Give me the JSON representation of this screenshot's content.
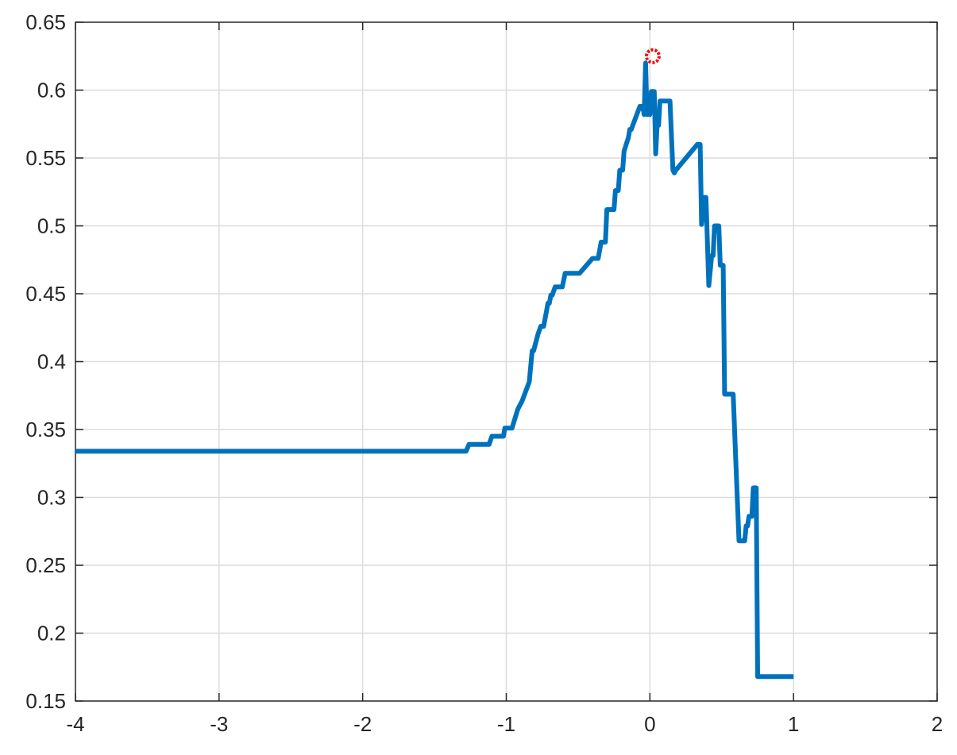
{
  "chart_data": {
    "type": "line",
    "title": "",
    "xlabel": "",
    "ylabel": "",
    "xlim": [
      -4,
      2
    ],
    "ylim": [
      0.15,
      0.65
    ],
    "grid": true,
    "x_ticks": [
      -4,
      -3,
      -2,
      -1,
      0,
      1,
      2
    ],
    "x_tick_labels": [
      "-4",
      "-3",
      "-2",
      "-1",
      "0",
      "1",
      "2"
    ],
    "y_ticks": [
      0.15,
      0.2,
      0.25,
      0.3,
      0.35,
      0.4,
      0.45,
      0.5,
      0.55,
      0.6,
      0.65
    ],
    "y_tick_labels": [
      "0.15",
      "0.2",
      "0.25",
      "0.3",
      "0.35",
      "0.4",
      "0.45",
      "0.5",
      "0.55",
      "0.6",
      "0.65"
    ],
    "series": [
      {
        "color": "#0072bd",
        "x": [
          -4.0,
          -1.28,
          -1.26,
          -1.12,
          -1.1,
          -1.02,
          -1.01,
          -0.96,
          -0.92,
          -0.89,
          -0.84,
          -0.82,
          -0.81,
          -0.78,
          -0.76,
          -0.74,
          -0.72,
          -0.71,
          -0.7,
          -0.69,
          -0.68,
          -0.66,
          -0.64,
          -0.61,
          -0.59,
          -0.55,
          -0.52,
          -0.49,
          -0.4,
          -0.39,
          -0.36,
          -0.34,
          -0.31,
          -0.3,
          -0.28,
          -0.25,
          -0.24,
          -0.22,
          -0.21,
          -0.19,
          -0.18,
          -0.15,
          -0.14,
          -0.13,
          -0.07,
          -0.05,
          -0.04,
          -0.03,
          -0.02,
          -0.01,
          0.0,
          0.01,
          0.02,
          0.03,
          0.04,
          0.05,
          0.06,
          0.07,
          0.09,
          0.1,
          0.11,
          0.13,
          0.14,
          0.16,
          0.17,
          0.18,
          0.33,
          0.34,
          0.35,
          0.36,
          0.38,
          0.39,
          0.41,
          0.43,
          0.44,
          0.45,
          0.46,
          0.47,
          0.48,
          0.49,
          0.5,
          0.51,
          0.52,
          0.53,
          0.54,
          0.56,
          0.58,
          0.6,
          0.62,
          0.66,
          0.67,
          0.68,
          0.69,
          0.71,
          0.72,
          0.74,
          0.75,
          0.77,
          0.79,
          0.8,
          0.82,
          0.84,
          0.86,
          0.87,
          0.88,
          0.91,
          0.93,
          0.95,
          0.96,
          0.97,
          0.98,
          0.99,
          1.0
        ],
        "y": [
          0.334,
          0.334,
          0.339,
          0.339,
          0.345,
          0.345,
          0.351,
          0.351,
          0.365,
          0.371,
          0.385,
          0.408,
          0.408,
          0.42,
          0.426,
          0.426,
          0.437,
          0.443,
          0.443,
          0.449,
          0.449,
          0.455,
          0.455,
          0.455,
          0.465,
          0.465,
          0.465,
          0.465,
          0.476,
          0.476,
          0.476,
          0.488,
          0.488,
          0.512,
          0.512,
          0.512,
          0.526,
          0.526,
          0.541,
          0.541,
          0.555,
          0.565,
          0.571,
          0.571,
          0.588,
          0.588,
          0.582,
          0.62,
          0.582,
          0.582,
          0.582,
          0.599,
          0.599,
          0.599,
          0.553,
          0.574,
          0.574,
          0.592,
          0.592,
          0.592,
          0.592,
          0.592,
          0.592,
          0.541,
          0.539,
          0.541,
          0.56,
          0.56,
          0.56,
          0.501,
          0.521,
          0.521,
          0.456,
          0.478,
          0.478,
          0.5,
          0.5,
          0.5,
          0.5,
          0.471,
          0.471,
          0.471,
          0.376,
          0.376,
          0.376,
          0.376,
          0.376,
          0.322,
          0.268,
          0.268,
          0.279,
          0.279,
          0.286,
          0.286,
          0.307,
          0.307,
          0.168,
          0.168,
          0.168,
          0.168,
          0.168,
          0.168,
          0.168,
          0.168,
          0.168,
          0.168,
          0.168,
          0.168,
          0.168,
          0.168,
          0.168,
          0.168,
          0.168
        ]
      }
    ],
    "marker": {
      "x": 0.02,
      "y": 0.625,
      "shape": "circle",
      "color": "#ff0000"
    }
  }
}
